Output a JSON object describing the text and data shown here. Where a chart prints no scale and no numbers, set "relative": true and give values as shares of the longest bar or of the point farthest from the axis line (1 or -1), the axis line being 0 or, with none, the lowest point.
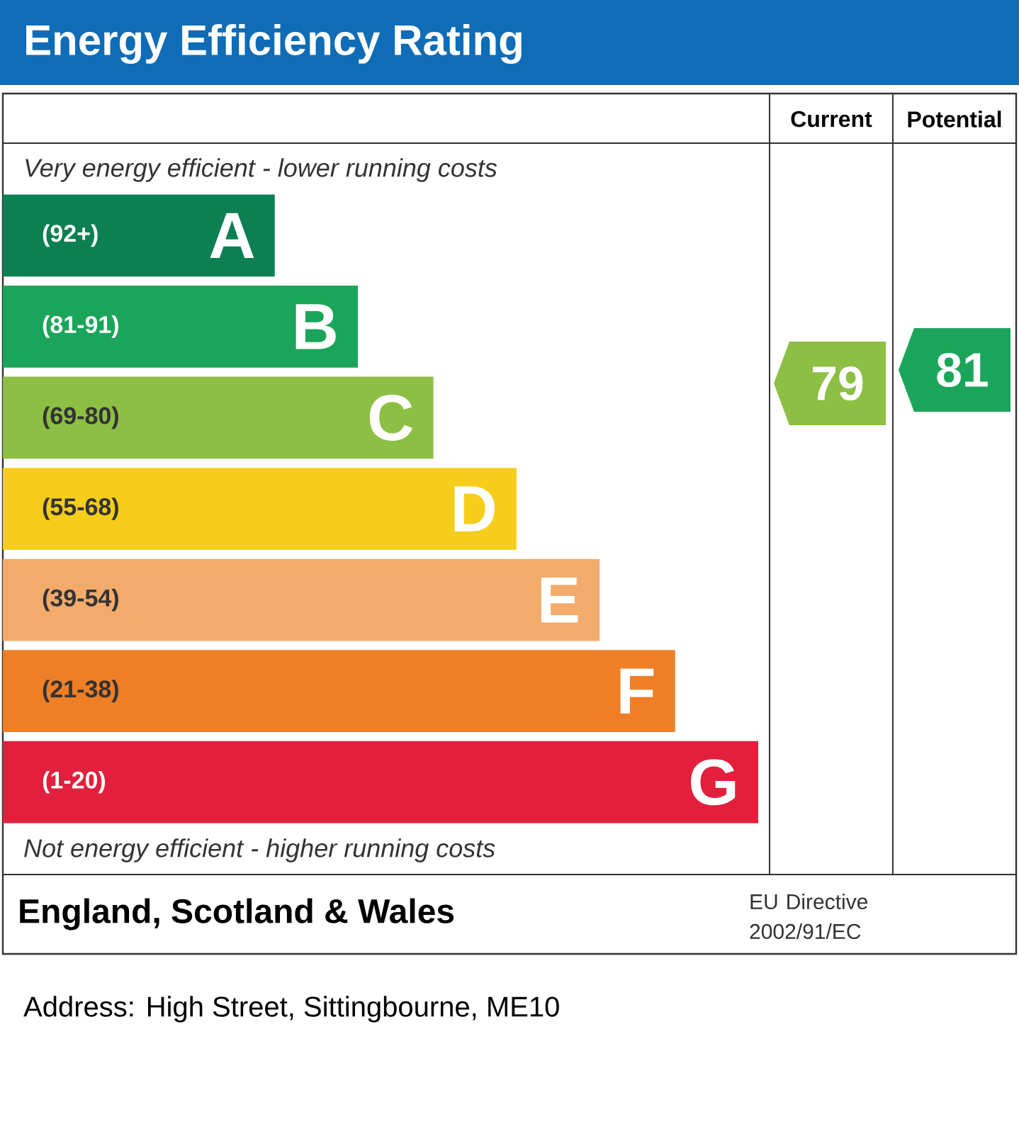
{
  "chart_data": {
    "type": "bar",
    "orientation": "horizontal",
    "relative": true,
    "title": "Energy Efficiency Rating",
    "categories": [
      "A",
      "B",
      "C",
      "D",
      "E",
      "F",
      "G"
    ],
    "values": [
      0.36,
      0.47,
      0.57,
      0.68,
      0.79,
      0.89,
      1
    ],
    "colors": [
      "#0c7f53",
      "#1ba55a",
      "#8cbf43",
      "#f6cd1b",
      "#f3ab6c",
      "#ee7f27",
      "#e21f3c"
    ],
    "annotations": [
      "Very energy efficient - lower running costs",
      "Not energy efficient - higher running costs",
      "(92+)",
      "(81-91)",
      "(69-80)",
      "(55-68)",
      "(39-54)",
      "(21-38)",
      "(1-20)",
      "Current",
      "Potential",
      "79",
      "81",
      "England, Scotland & Wales",
      "EU Directive 2002/91/EC",
      "Address: High Street, Sittingbourne, ME10"
    ]
  }
}
